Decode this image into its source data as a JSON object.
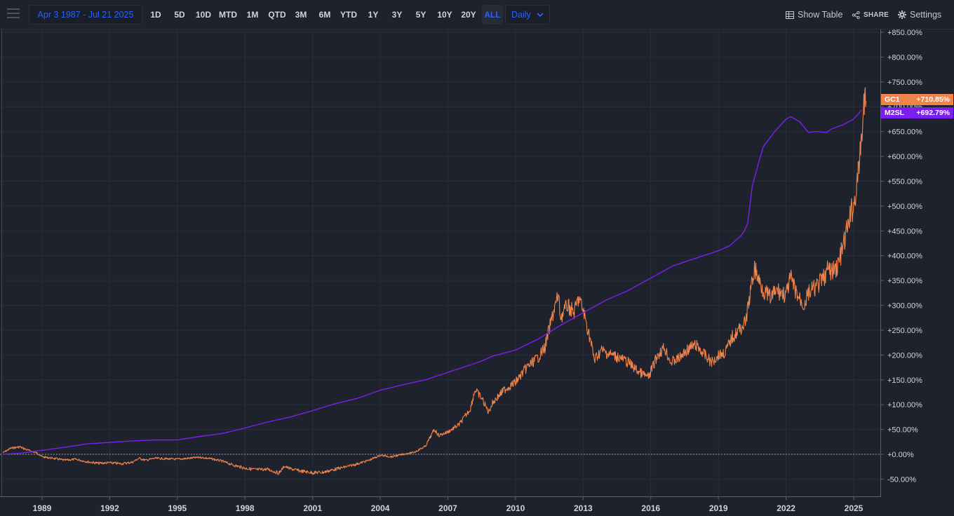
{
  "toolbar": {
    "date_range": "Apr 3 1987 - Jul 21 2025",
    "ranges": [
      "1D",
      "5D",
      "10D",
      "MTD",
      "1M",
      "QTD",
      "3M",
      "6M",
      "YTD",
      "1Y",
      "3Y",
      "5Y",
      "10Y",
      "20Y",
      "ALL"
    ],
    "active_range": "ALL",
    "interval": "Daily",
    "show_table_label": "Show Table",
    "share_label": "SHARE",
    "settings_label": "Settings"
  },
  "colors": {
    "background": "#1e222d",
    "gc1": "#f0834a",
    "m2sl": "#7b1ff0",
    "accent": "#2962ff"
  },
  "icons": [
    "menu-icon",
    "table-icon",
    "share-icon",
    "gear-icon",
    "chevron-down-icon"
  ],
  "tags": {
    "gc1": {
      "name": "GC1",
      "value": "+710.85%"
    },
    "m2sl": {
      "name": "M2SL",
      "value": "+692.79%"
    }
  },
  "chart_data": {
    "type": "line",
    "grid": true,
    "y_axis_side": "right",
    "y_ticks": [
      "-50.00%",
      "+0.00%",
      "+50.00%",
      "+100.00%",
      "+150.00%",
      "+200.00%",
      "+250.00%",
      "+300.00%",
      "+350.00%",
      "+400.00%",
      "+450.00%",
      "+500.00%",
      "+550.00%",
      "+600.00%",
      "+650.00%",
      "+700.00%",
      "+750.00%",
      "+800.00%",
      "+850.00%"
    ],
    "y_tick_values": [
      -50,
      0,
      50,
      100,
      150,
      200,
      250,
      300,
      350,
      400,
      450,
      500,
      550,
      600,
      650,
      700,
      750,
      800,
      850
    ],
    "ylim": [
      -80,
      857
    ],
    "x_ticks": [
      "1989",
      "1992",
      "1995",
      "1998",
      "2001",
      "2004",
      "2007",
      "2010",
      "2013",
      "2016",
      "2019",
      "2022",
      "2025"
    ],
    "x_tick_values": [
      1989,
      1992,
      1995,
      1998,
      2001,
      2004,
      2007,
      2010,
      2013,
      2016,
      2019,
      2022,
      2025
    ],
    "xlim": [
      1987.26,
      2026.2
    ],
    "baseline": 0,
    "series": [
      {
        "name": "GC1",
        "color": "#f0834a",
        "x": [
          1987.26,
          1987.6,
          1988.0,
          1988.4,
          1988.8,
          1989.0,
          1989.5,
          1990.0,
          1990.5,
          1991.0,
          1991.5,
          1992.0,
          1992.5,
          1993.0,
          1993.3,
          1993.6,
          1994.0,
          1994.5,
          1995.0,
          1995.5,
          1996.0,
          1996.5,
          1997.0,
          1997.5,
          1998.0,
          1998.5,
          1999.0,
          1999.5,
          1999.75,
          2000.0,
          2000.5,
          2001.0,
          2001.5,
          2002.0,
          2002.5,
          2003.0,
          2003.5,
          2004.0,
          2004.5,
          2005.0,
          2005.5,
          2006.0,
          2006.4,
          2006.6,
          2007.0,
          2007.5,
          2008.0,
          2008.2,
          2008.5,
          2008.8,
          2009.0,
          2009.5,
          2010.0,
          2010.5,
          2011.0,
          2011.3,
          2011.7,
          2011.9,
          2012.0,
          2012.3,
          2012.6,
          2012.8,
          2013.0,
          2013.3,
          2013.5,
          2013.8,
          2014.0,
          2014.3,
          2014.6,
          2015.0,
          2015.5,
          2015.9,
          2016.3,
          2016.6,
          2016.9,
          2017.3,
          2017.6,
          2018.0,
          2018.3,
          2018.7,
          2019.0,
          2019.3,
          2019.6,
          2019.9,
          2020.2,
          2020.4,
          2020.6,
          2020.8,
          2021.0,
          2021.3,
          2021.6,
          2022.0,
          2022.2,
          2022.5,
          2022.8,
          2023.0,
          2023.3,
          2023.6,
          2023.9,
          2024.0,
          2024.3,
          2024.6,
          2024.9,
          2025.0,
          2025.2,
          2025.35,
          2025.45,
          2025.55
        ],
        "y": [
          3,
          12,
          15,
          8,
          2,
          -5,
          -8,
          -12,
          -10,
          -15,
          -18,
          -17,
          -19,
          -16,
          -8,
          -12,
          -8,
          -9,
          -10,
          -8,
          -6,
          -9,
          -14,
          -22,
          -28,
          -31,
          -30,
          -38,
          -24,
          -29,
          -34,
          -37,
          -36,
          -30,
          -25,
          -19,
          -12,
          -2,
          -5,
          0,
          4,
          16,
          50,
          38,
          45,
          60,
          92,
          130,
          113,
          85,
          105,
          130,
          145,
          175,
          195,
          215,
          290,
          320,
          275,
          300,
          285,
          315,
          290,
          235,
          190,
          210,
          205,
          200,
          195,
          185,
          165,
          155,
          200,
          215,
          185,
          195,
          210,
          220,
          205,
          185,
          200,
          205,
          235,
          250,
          265,
          320,
          375,
          350,
          330,
          315,
          330,
          320,
          355,
          320,
          300,
          325,
          335,
          350,
          375,
          365,
          380,
          430,
          490,
          500,
          560,
          640,
          700,
          711
        ]
      },
      {
        "name": "M2SL",
        "color": "#7b1ff0",
        "x": [
          1987.26,
          1988.0,
          1989.0,
          1990.0,
          1991.0,
          1992.0,
          1993.0,
          1994.0,
          1995.0,
          1996.0,
          1997.0,
          1998.0,
          1999.0,
          2000.0,
          2001.0,
          2002.0,
          2003.0,
          2004.0,
          2005.0,
          2006.0,
          2007.0,
          2008.0,
          2008.5,
          2009.0,
          2010.0,
          2011.0,
          2012.0,
          2013.0,
          2014.0,
          2015.0,
          2016.0,
          2017.0,
          2018.0,
          2019.0,
          2019.5,
          2020.0,
          2020.15,
          2020.3,
          2020.5,
          2020.8,
          2021.0,
          2021.5,
          2022.0,
          2022.2,
          2022.6,
          2023.0,
          2023.3,
          2023.8,
          2024.0,
          2024.5,
          2025.0,
          2025.35
        ],
        "y": [
          0,
          2,
          8,
          14,
          21,
          24,
          27,
          29,
          29,
          36,
          42,
          53,
          65,
          75,
          88,
          102,
          113,
          129,
          140,
          150,
          165,
          180,
          188,
          198,
          210,
          232,
          260,
          285,
          310,
          330,
          355,
          380,
          395,
          410,
          420,
          440,
          450,
          465,
          540,
          590,
          620,
          650,
          675,
          680,
          670,
          648,
          650,
          648,
          655,
          663,
          675,
          693
        ]
      }
    ]
  }
}
